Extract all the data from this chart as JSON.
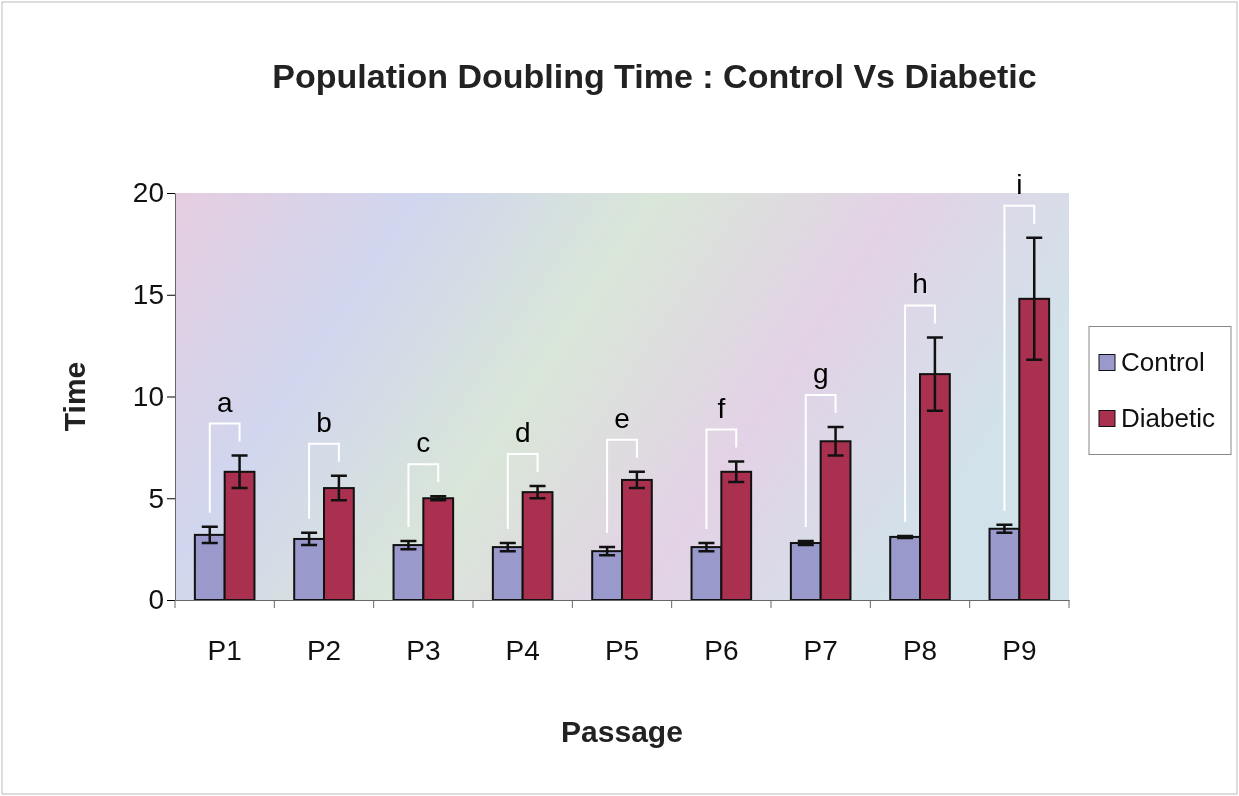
{
  "chart_data": {
    "type": "bar",
    "title": "Population Doubling Time : Control Vs Diabetic",
    "xlabel": "Passage",
    "ylabel": "Time",
    "categories": [
      "P1",
      "P2",
      "P3",
      "P4",
      "P5",
      "P6",
      "P7",
      "P8",
      "P9"
    ],
    "series": [
      {
        "name": "Control",
        "color": "#9999cc",
        "values": [
          3.2,
          3.0,
          2.7,
          2.6,
          2.4,
          2.6,
          2.8,
          3.1,
          3.5
        ],
        "errors": [
          0.4,
          0.3,
          0.2,
          0.2,
          0.2,
          0.2,
          0.1,
          0.05,
          0.2
        ]
      },
      {
        "name": "Diabetic",
        "color": "#a9304f",
        "values": [
          6.3,
          5.5,
          5.0,
          5.3,
          5.9,
          6.3,
          7.8,
          11.1,
          14.8
        ],
        "errors": [
          0.8,
          0.6,
          0.1,
          0.3,
          0.4,
          0.5,
          0.7,
          1.8,
          3.0
        ]
      }
    ],
    "annotations": [
      "a",
      "b",
      "c",
      "d",
      "e",
      "f",
      "g",
      "h",
      "i"
    ],
    "ylim": [
      0,
      20
    ],
    "yticks": [
      0,
      5,
      10,
      15,
      20
    ],
    "grid": false,
    "legend": "right"
  }
}
